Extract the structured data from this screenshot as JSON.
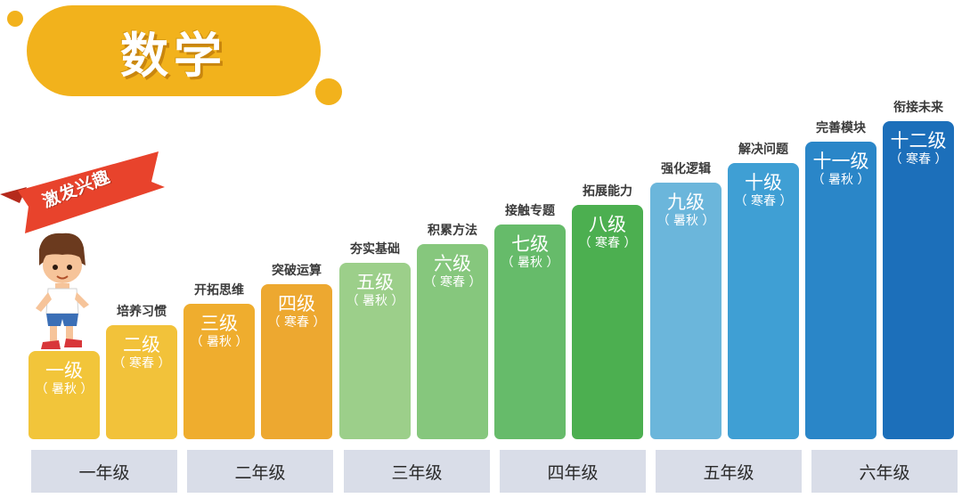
{
  "title": "数学",
  "banner": "激发兴趣",
  "bars": [
    {
      "level": "一级",
      "term": "（ 暑秋 ）",
      "goal": "",
      "color": "#f2c53a"
    },
    {
      "level": "二级",
      "term": "（ 寒春 ）",
      "goal": "培养习惯",
      "color": "#f2c23a"
    },
    {
      "level": "三级",
      "term": "（ 暑秋 ）",
      "goal": "开拓思维",
      "color": "#efad2e"
    },
    {
      "level": "四级",
      "term": "（ 寒春 ）",
      "goal": "突破运算",
      "color": "#eda830"
    },
    {
      "level": "五级",
      "term": "（ 暑秋 ）",
      "goal": "夯实基础",
      "color": "#9ccf8a"
    },
    {
      "level": "六级",
      "term": "（ 寒春 ）",
      "goal": "积累方法",
      "color": "#86c77d"
    },
    {
      "level": "七级",
      "term": "（ 暑秋 ）",
      "goal": "接触专题",
      "color": "#66bb6a"
    },
    {
      "level": "八级",
      "term": "（ 寒春 ）",
      "goal": "拓展能力",
      "color": "#4caf50"
    },
    {
      "level": "九级",
      "term": "（ 暑秋 ）",
      "goal": "强化逻辑",
      "color": "#6bb6db"
    },
    {
      "level": "十级",
      "term": "（ 寒春 ）",
      "goal": "解决问题",
      "color": "#3f9fd4"
    },
    {
      "level": "十一级",
      "term": "（ 暑秋 ）",
      "goal": "完善模块",
      "color": "#2a86c8"
    },
    {
      "level": "十二级",
      "term": "（ 寒春 ）",
      "goal": "衔接未来",
      "color": "#1c6fba"
    }
  ],
  "grades": [
    "一年级",
    "二年级",
    "三年级",
    "四年级",
    "五年级",
    "六年级"
  ]
}
